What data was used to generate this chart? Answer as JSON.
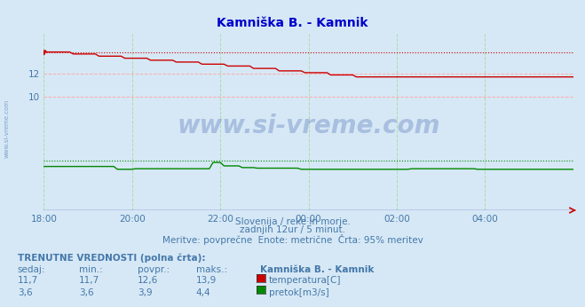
{
  "title": "Kamniška B. - Kamnik",
  "bg_color": "#d6e8f5",
  "plot_bg_color": "#d6e8f5",
  "text_color": "#4477aa",
  "title_color": "#0000cc",
  "grid_color_h": "#ffaaaa",
  "grid_color_v": "#aaddaa",
  "xlim": [
    0,
    144
  ],
  "ylim": [
    0,
    15.5
  ],
  "yticks": [
    10,
    12
  ],
  "xtick_labels": [
    "18:00",
    "20:00",
    "22:00",
    "00:00",
    "02:00",
    "04:00"
  ],
  "xtick_positions": [
    0,
    24,
    48,
    72,
    96,
    120
  ],
  "temp_color": "#cc0000",
  "flow_color": "#008800",
  "height_color": "#4444cc",
  "temp_max_val": 13.9,
  "flow_max_val": 4.4,
  "subtitle1": "Slovenija / reke in morje.",
  "subtitle2": "zadnjih 12ur / 5 minut.",
  "subtitle3": "Meritve: povprečne  Enote: metrične  Črta: 95% meritev",
  "legend_title": "TRENUTNE VREDNOSTI (polna črta):",
  "col_headers": [
    "sedaj:",
    "min.:",
    "povpr.:",
    "maks.:",
    "Kamniška B. - Kamnik"
  ],
  "row1": [
    "11,7",
    "11,7",
    "12,6",
    "13,9"
  ],
  "row2": [
    "3,6",
    "3,6",
    "3,9",
    "4,4"
  ],
  "row1_label": "temperatura[C]",
  "row2_label": "pretok[m3/s]",
  "watermark": "www.si-vreme.com"
}
